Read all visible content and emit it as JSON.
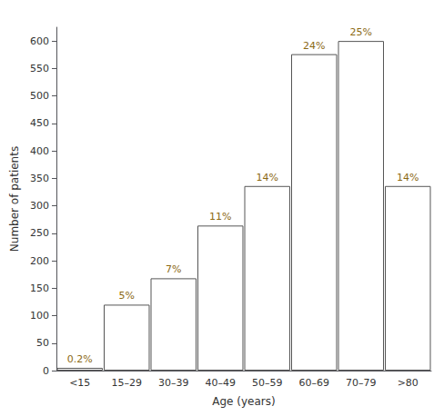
{
  "chart_data": {
    "type": "bar",
    "xlabel": "Age (years)",
    "ylabel": "Number of patients",
    "categories": [
      "<15",
      "15–29",
      "30–39",
      "40–49",
      "50–59",
      "60–69",
      "70–79",
      ">80"
    ],
    "values": [
      5,
      120,
      168,
      264,
      336,
      576,
      600,
      336
    ],
    "color": "white",
    "ylim": [
      0,
      625
    ],
    "yticks": [
      0,
      50,
      100,
      150,
      200,
      250,
      300,
      350,
      400,
      450,
      500,
      550,
      600
    ],
    "grid": false,
    "annotations": [
      {
        "category": "<15",
        "text": "0.2%"
      },
      {
        "category": "15–29",
        "text": "5%"
      },
      {
        "category": "30–39",
        "text": "7%"
      },
      {
        "category": "40–49",
        "text": "11%"
      },
      {
        "category": "50–59",
        "text": "14%"
      },
      {
        "category": "60–69",
        "text": "24%"
      },
      {
        "category": "70–79",
        "text": "25%"
      },
      {
        "category": ">80",
        "text": "14%"
      }
    ]
  }
}
